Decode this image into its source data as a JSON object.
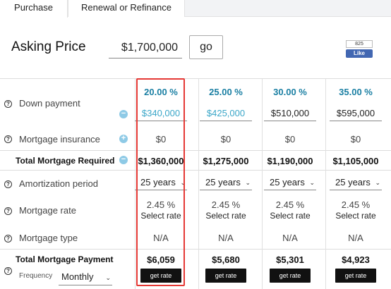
{
  "tabs": {
    "purchase": "Purchase",
    "renewal": "Renewal or Refinance"
  },
  "asking": {
    "label": "Asking Price",
    "value": "$1,700,000",
    "go": "go"
  },
  "facebook": {
    "count": "825",
    "like": "Like"
  },
  "icons": {
    "help": "?",
    "minus": "−",
    "plus": "+"
  },
  "rows": {
    "down_payment": "Down payment",
    "mortgage_insurance": "Mortgage insurance",
    "total_mortgage_required": "Total Mortgage Required",
    "amortization": "Amortization period",
    "mortgage_rate": "Mortgage rate",
    "mortgage_type": "Mortgage type",
    "total_payment": "Total Mortgage Payment",
    "frequency_label": "Frequency",
    "frequency_value": "Monthly"
  },
  "columns": [
    {
      "percent": "20.00 %",
      "down": "$340,000",
      "insurance": "$0",
      "total": "$1,360,000",
      "amortization": "25 years",
      "rate": "2.45 %",
      "select_rate": "Select rate",
      "type": "N/A",
      "payment": "$6,059",
      "get_rate": "get rate"
    },
    {
      "percent": "25.00 %",
      "down": "$425,000",
      "insurance": "$0",
      "total": "$1,275,000",
      "amortization": "25 years",
      "rate": "2.45 %",
      "select_rate": "Select rate",
      "type": "N/A",
      "payment": "$5,680",
      "get_rate": "get rate"
    },
    {
      "percent": "30.00 %",
      "down": "$510,000",
      "insurance": "$0",
      "total": "$1,190,000",
      "amortization": "25 years",
      "rate": "2.45 %",
      "select_rate": "Select rate",
      "type": "N/A",
      "payment": "$5,301",
      "get_rate": "get rate"
    },
    {
      "percent": "35.00 %",
      "down": "$595,000",
      "insurance": "$0",
      "total": "$1,105,000",
      "amortization": "25 years",
      "rate": "2.45 %",
      "select_rate": "Select rate",
      "type": "N/A",
      "payment": "$4,923",
      "get_rate": "get rate"
    }
  ]
}
